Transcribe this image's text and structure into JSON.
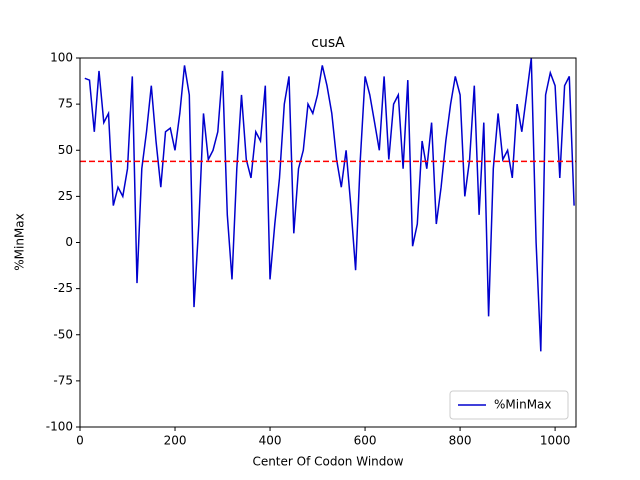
{
  "chart_data": {
    "type": "line",
    "title": "cusA",
    "x_label": "Center Of Codon Window",
    "y_label": "%MinMax",
    "x": [
      10,
      20,
      30,
      40,
      50,
      60,
      70,
      80,
      90,
      100,
      110,
      120,
      130,
      140,
      150,
      160,
      170,
      180,
      190,
      200,
      210,
      220,
      230,
      240,
      250,
      260,
      270,
      280,
      290,
      300,
      310,
      320,
      330,
      340,
      350,
      360,
      370,
      380,
      390,
      400,
      410,
      420,
      430,
      440,
      450,
      460,
      470,
      480,
      490,
      500,
      510,
      520,
      530,
      540,
      550,
      560,
      570,
      580,
      590,
      600,
      610,
      620,
      630,
      640,
      650,
      660,
      670,
      680,
      690,
      700,
      710,
      720,
      730,
      740,
      750,
      760,
      770,
      780,
      790,
      800,
      810,
      820,
      830,
      840,
      850,
      860,
      870,
      880,
      890,
      900,
      910,
      920,
      930,
      940,
      950,
      960,
      970,
      980,
      990,
      1000,
      1010,
      1020,
      1030,
      1040
    ],
    "series": [
      {
        "name": "%MinMax",
        "color": "#0000cd",
        "values": [
          89,
          88,
          60,
          93,
          65,
          70,
          20,
          30,
          25,
          40,
          90,
          -22,
          40,
          60,
          85,
          55,
          30,
          60,
          62,
          50,
          70,
          96,
          80,
          -35,
          10,
          70,
          45,
          50,
          60,
          93,
          15,
          -20,
          40,
          80,
          45,
          35,
          60,
          55,
          85,
          -20,
          10,
          35,
          75,
          90,
          5,
          40,
          50,
          75,
          70,
          80,
          96,
          85,
          70,
          45,
          30,
          50,
          20,
          -15,
          45,
          90,
          80,
          65,
          50,
          90,
          45,
          75,
          80,
          40,
          88,
          -2,
          10,
          55,
          40,
          65,
          10,
          30,
          55,
          75,
          90,
          80,
          25,
          45,
          85,
          15,
          65,
          -40,
          40,
          70,
          45,
          50,
          35,
          75,
          60,
          80,
          100,
          0,
          -59,
          80,
          92,
          85,
          35,
          85,
          90,
          20
        ]
      }
    ],
    "reference_line": {
      "value": 44,
      "color": "#ff0000"
    },
    "xlim": [
      0,
      1044
    ],
    "ylim": [
      -100,
      100
    ],
    "xticks": [
      0,
      200,
      400,
      600,
      800,
      1000
    ],
    "yticks": [
      -100,
      -75,
      -50,
      -25,
      0,
      25,
      50,
      75,
      100
    ],
    "grid": false,
    "legend_position": "lower-right"
  }
}
